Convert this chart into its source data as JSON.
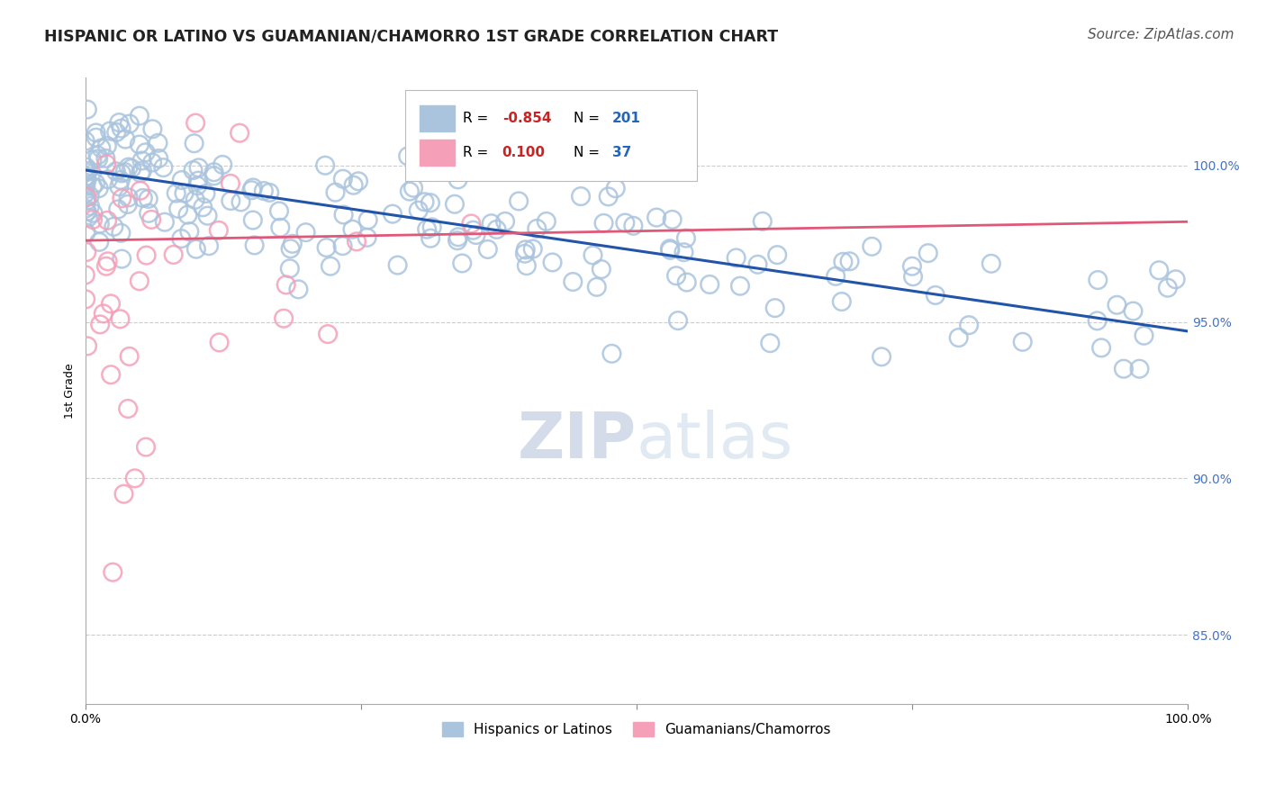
{
  "title": "HISPANIC OR LATINO VS GUAMANIAN/CHAMORRO 1ST GRADE CORRELATION CHART",
  "source": "Source: ZipAtlas.com",
  "watermark_zip": "ZIP",
  "watermark_atlas": "atlas",
  "ylabel": "1st Grade",
  "x_min": 0.0,
  "x_max": 1.0,
  "y_min": 0.828,
  "y_max": 1.028,
  "yticks": [
    0.85,
    0.9,
    0.95,
    1.0
  ],
  "ytick_labels": [
    "85.0%",
    "90.0%",
    "95.0%",
    "100.0%"
  ],
  "blue_R": -0.854,
  "blue_N": 201,
  "pink_R": 0.1,
  "pink_N": 37,
  "blue_color": "#aac4de",
  "blue_edge_color": "#aac4de",
  "blue_line_color": "#2255aa",
  "pink_color": "#f5a0b8",
  "pink_edge_color": "#f5a0b8",
  "pink_line_color": "#e05878",
  "legend_blue_label": "Hispanics or Latinos",
  "legend_pink_label": "Guamanians/Chamorros",
  "blue_trend_x0": 0.0,
  "blue_trend_y0": 0.9985,
  "blue_trend_x1": 1.0,
  "blue_trend_y1": 0.947,
  "pink_trend_x0": 0.0,
  "pink_trend_y0": 0.976,
  "pink_trend_x1": 1.0,
  "pink_trend_y1": 0.982,
  "title_fontsize": 12.5,
  "source_fontsize": 11,
  "label_fontsize": 9,
  "tick_fontsize": 10,
  "watermark_fontsize_zip": 52,
  "watermark_fontsize_atlas": 52,
  "right_label_color": "#4472c4",
  "grid_color": "#cccccc",
  "background_color": "#ffffff"
}
